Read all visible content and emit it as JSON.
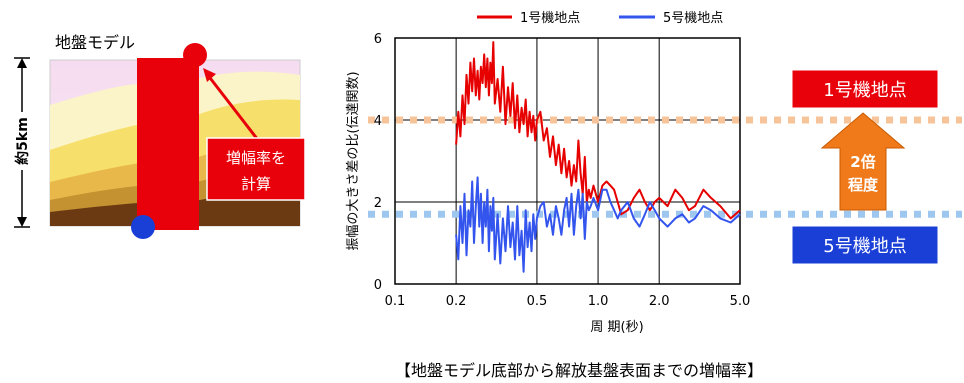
{
  "ground_model": {
    "title": "地盤モデル",
    "depth_label": "約5km",
    "callout_line1": "増幅率を",
    "callout_line2": "計算"
  },
  "badges": {
    "unit1": "1号機地点",
    "unit5": "5号機地点",
    "ratio_line1": "2倍",
    "ratio_line2": "程度"
  },
  "caption": "【地盤モデル底部から解放基盤表面までの増幅率】",
  "colors": {
    "unit1": "#e60000",
    "unit5": "#3355ee",
    "unit1_level": "#f7c49a",
    "unit5_level": "#9ec7f0",
    "arrow": "#f07a1a",
    "badge_red": "#e8000a",
    "badge_blue": "#1a3fd6"
  },
  "chart_data": {
    "type": "line",
    "xscale": "log",
    "xlim": [
      0.1,
      5.0
    ],
    "ylim": [
      0,
      6
    ],
    "xlabel": "周 期(秒)",
    "ylabel": "振幅の大きさ差の比(伝達関数)",
    "xticks": [
      0.1,
      0.2,
      0.5,
      1.0,
      2.0,
      5.0
    ],
    "xtick_labels": [
      "0.1",
      "0.2",
      "0.5",
      "1.0",
      "2.0",
      "5.0"
    ],
    "yticks": [
      0,
      2,
      4,
      6
    ],
    "ytick_labels": [
      "0",
      "2",
      "4",
      "6"
    ],
    "grid": true,
    "legend_position": "top",
    "reference_levels": [
      4.0,
      1.7
    ],
    "series": [
      {
        "name": "1号機地点",
        "x": [
          0.2,
          0.205,
          0.21,
          0.215,
          0.22,
          0.225,
          0.23,
          0.235,
          0.24,
          0.245,
          0.25,
          0.255,
          0.26,
          0.265,
          0.27,
          0.275,
          0.28,
          0.285,
          0.29,
          0.295,
          0.3,
          0.305,
          0.31,
          0.32,
          0.33,
          0.34,
          0.35,
          0.36,
          0.37,
          0.38,
          0.39,
          0.4,
          0.41,
          0.42,
          0.43,
          0.44,
          0.45,
          0.46,
          0.47,
          0.48,
          0.49,
          0.5,
          0.52,
          0.54,
          0.56,
          0.58,
          0.6,
          0.62,
          0.64,
          0.66,
          0.68,
          0.7,
          0.72,
          0.74,
          0.76,
          0.78,
          0.8,
          0.82,
          0.84,
          0.86,
          0.88,
          0.9,
          0.92,
          0.95,
          1.0,
          1.05,
          1.1,
          1.15,
          1.2,
          1.25,
          1.3,
          1.4,
          1.5,
          1.6,
          1.7,
          1.8,
          1.9,
          2.0,
          2.2,
          2.4,
          2.6,
          2.8,
          3.0,
          3.3,
          3.6,
          4.0,
          4.5,
          5.0
        ],
        "values": [
          3.4,
          4.2,
          3.6,
          4.6,
          3.9,
          5.1,
          4.4,
          5.4,
          4.7,
          5.5,
          4.6,
          5.2,
          4.5,
          5.3,
          4.9,
          5.6,
          4.8,
          5.5,
          4.6,
          5.4,
          4.9,
          5.9,
          4.4,
          5.0,
          4.2,
          5.3,
          3.9,
          4.8,
          4.1,
          4.9,
          3.8,
          4.6,
          3.7,
          4.3,
          3.9,
          4.5,
          3.6,
          4.2,
          3.7,
          4.1,
          3.5,
          4.0,
          4.2,
          3.5,
          3.8,
          3.1,
          3.6,
          2.9,
          3.4,
          2.7,
          3.3,
          2.6,
          3.0,
          2.4,
          2.9,
          2.5,
          3.5,
          2.7,
          2.2,
          3.1,
          2.0,
          2.3,
          2.1,
          2.4,
          2.0,
          2.4,
          2.5,
          2.4,
          2.3,
          2.0,
          1.7,
          1.8,
          2.1,
          2.3,
          2.0,
          1.8,
          2.0,
          2.1,
          1.9,
          2.3,
          2.1,
          1.8,
          1.9,
          2.3,
          2.1,
          1.9,
          1.6,
          1.8
        ]
      },
      {
        "name": "5号機地点",
        "x": [
          0.2,
          0.205,
          0.21,
          0.215,
          0.22,
          0.225,
          0.23,
          0.235,
          0.24,
          0.245,
          0.25,
          0.255,
          0.26,
          0.265,
          0.27,
          0.275,
          0.28,
          0.285,
          0.29,
          0.295,
          0.3,
          0.305,
          0.31,
          0.32,
          0.33,
          0.34,
          0.35,
          0.36,
          0.37,
          0.38,
          0.39,
          0.4,
          0.41,
          0.42,
          0.43,
          0.44,
          0.45,
          0.46,
          0.47,
          0.48,
          0.49,
          0.5,
          0.52,
          0.54,
          0.56,
          0.58,
          0.6,
          0.62,
          0.64,
          0.66,
          0.68,
          0.7,
          0.72,
          0.74,
          0.76,
          0.78,
          0.8,
          0.82,
          0.84,
          0.86,
          0.88,
          0.9,
          0.92,
          0.95,
          1.0,
          1.05,
          1.1,
          1.15,
          1.2,
          1.25,
          1.3,
          1.4,
          1.5,
          1.6,
          1.7,
          1.8,
          1.9,
          2.0,
          2.2,
          2.4,
          2.6,
          2.8,
          3.0,
          3.3,
          3.6,
          4.0,
          4.5,
          5.0
        ],
        "values": [
          1.2,
          0.6,
          1.9,
          1.0,
          2.2,
          0.7,
          1.8,
          1.4,
          2.5,
          1.0,
          1.9,
          2.6,
          1.4,
          2.2,
          1.0,
          2.0,
          1.4,
          2.3,
          0.8,
          1.9,
          1.3,
          2.1,
          0.6,
          1.7,
          0.5,
          1.6,
          0.8,
          1.9,
          0.9,
          1.5,
          0.6,
          1.9,
          0.7,
          1.3,
          0.3,
          1.8,
          0.9,
          1.5,
          0.8,
          1.7,
          1.1,
          1.6,
          1.9,
          2.0,
          1.4,
          1.7,
          1.2,
          1.9,
          1.6,
          1.2,
          1.8,
          2.1,
          1.4,
          2.2,
          1.2,
          1.9,
          2.3,
          1.6,
          2.2,
          1.1,
          2.0,
          1.8,
          1.9,
          2.1,
          1.8,
          2.3,
          2.3,
          2.0,
          1.8,
          1.6,
          1.8,
          2.0,
          1.6,
          1.4,
          1.7,
          2.0,
          1.8,
          1.6,
          1.4,
          1.6,
          1.7,
          1.5,
          1.6,
          1.9,
          1.8,
          1.6,
          1.5,
          1.7
        ]
      }
    ]
  }
}
